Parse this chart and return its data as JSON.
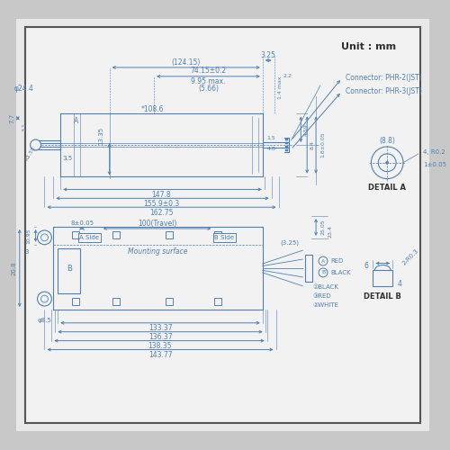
{
  "bg_outer": "#c8c8c8",
  "bg_inner": "#e8e8e8",
  "bg_drawing": "#f2f2f2",
  "dc": "#5080b0",
  "tc": "#303030",
  "unit_text": "Unit : mm",
  "connector1": "Connector: PHR-2(JST)",
  "connector2": "Connector: PHR-3(JST)",
  "detail_a": "DETAIL A",
  "detail_b": "DETAIL B"
}
